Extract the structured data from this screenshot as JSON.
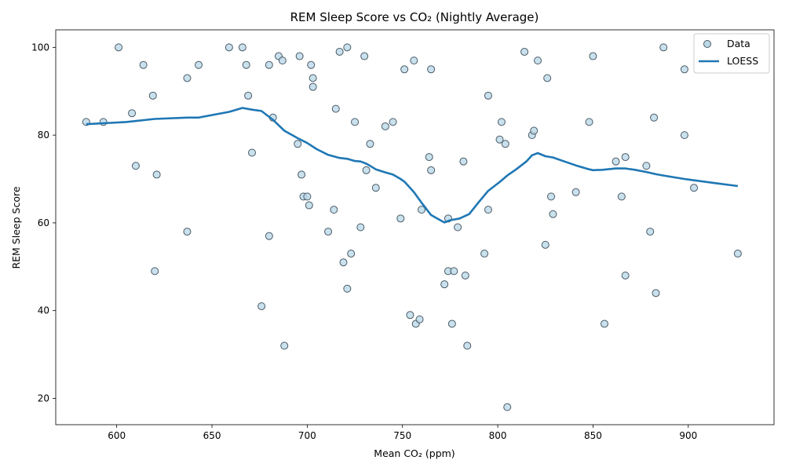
{
  "chart_data": {
    "type": "scatter",
    "title": "REM Sleep Score vs CO₂ (Nightly Average)",
    "xlabel": "Mean CO₂ (ppm)",
    "ylabel": "REM Sleep Score",
    "xlim": [
      568,
      945
    ],
    "ylim": [
      14,
      104
    ],
    "xticks": [
      600,
      650,
      700,
      750,
      800,
      850,
      900
    ],
    "yticks": [
      20,
      40,
      60,
      80,
      100
    ],
    "grid": false,
    "legend_position": "top-right",
    "colors": {
      "scatter_fill": "#bcd8e8",
      "scatter_edge": "#4a5a66",
      "line": "#1f77b4"
    },
    "series": [
      {
        "name": "Data",
        "type": "scatter",
        "points": [
          [
            584,
            83
          ],
          [
            593,
            83
          ],
          [
            601,
            100
          ],
          [
            608,
            85
          ],
          [
            610,
            73
          ],
          [
            614,
            96
          ],
          [
            619,
            89
          ],
          [
            620,
            49
          ],
          [
            621,
            71
          ],
          [
            637,
            93
          ],
          [
            637,
            58
          ],
          [
            643,
            96
          ],
          [
            659,
            100
          ],
          [
            666,
            100
          ],
          [
            668,
            96
          ],
          [
            669,
            89
          ],
          [
            671,
            76
          ],
          [
            676,
            41
          ],
          [
            680,
            96
          ],
          [
            680,
            57
          ],
          [
            682,
            84
          ],
          [
            685,
            98
          ],
          [
            687,
            97
          ],
          [
            688,
            32
          ],
          [
            695,
            78
          ],
          [
            696,
            98
          ],
          [
            697,
            71
          ],
          [
            698,
            66
          ],
          [
            700,
            66
          ],
          [
            701,
            64
          ],
          [
            702,
            96
          ],
          [
            703,
            93
          ],
          [
            703,
            91
          ],
          [
            711,
            58
          ],
          [
            714,
            63
          ],
          [
            715,
            86
          ],
          [
            717,
            99
          ],
          [
            719,
            51
          ],
          [
            721,
            100
          ],
          [
            721,
            45
          ],
          [
            723,
            53
          ],
          [
            725,
            83
          ],
          [
            728,
            59
          ],
          [
            730,
            98
          ],
          [
            731,
            72
          ],
          [
            733,
            78
          ],
          [
            736,
            68
          ],
          [
            741,
            82
          ],
          [
            745,
            83
          ],
          [
            749,
            61
          ],
          [
            751,
            95
          ],
          [
            754,
            39
          ],
          [
            756,
            97
          ],
          [
            757,
            37
          ],
          [
            759,
            38
          ],
          [
            760,
            63
          ],
          [
            764,
            75
          ],
          [
            765,
            95
          ],
          [
            765,
            72
          ],
          [
            772,
            46
          ],
          [
            774,
            61
          ],
          [
            774,
            49
          ],
          [
            776,
            37
          ],
          [
            777,
            49
          ],
          [
            779,
            59
          ],
          [
            782,
            74
          ],
          [
            783,
            48
          ],
          [
            784,
            32
          ],
          [
            793,
            53
          ],
          [
            795,
            89
          ],
          [
            795,
            63
          ],
          [
            801,
            79
          ],
          [
            802,
            83
          ],
          [
            804,
            78
          ],
          [
            805,
            18
          ],
          [
            814,
            99
          ],
          [
            818,
            80
          ],
          [
            819,
            81
          ],
          [
            821,
            97
          ],
          [
            825,
            55
          ],
          [
            826,
            93
          ],
          [
            828,
            66
          ],
          [
            829,
            62
          ],
          [
            841,
            67
          ],
          [
            848,
            83
          ],
          [
            850,
            98
          ],
          [
            856,
            37
          ],
          [
            862,
            74
          ],
          [
            865,
            66
          ],
          [
            867,
            75
          ],
          [
            867,
            48
          ],
          [
            878,
            73
          ],
          [
            880,
            58
          ],
          [
            882,
            84
          ],
          [
            883,
            44
          ],
          [
            887,
            100
          ],
          [
            898,
            95
          ],
          [
            898,
            80
          ],
          [
            903,
            68
          ],
          [
            926,
            53
          ]
        ]
      },
      {
        "name": "LOESS",
        "type": "line",
        "points": [
          [
            584,
            82.5
          ],
          [
            593,
            82.7
          ],
          [
            605,
            83
          ],
          [
            620,
            83.7
          ],
          [
            637,
            84
          ],
          [
            643,
            84
          ],
          [
            659,
            85.3
          ],
          [
            666,
            86.2
          ],
          [
            671,
            85.8
          ],
          [
            676,
            85.5
          ],
          [
            682,
            83.5
          ],
          [
            688,
            81
          ],
          [
            695,
            79.3
          ],
          [
            700,
            78.2
          ],
          [
            705,
            76.8
          ],
          [
            711,
            75.5
          ],
          [
            717,
            74.8
          ],
          [
            721,
            74.6
          ],
          [
            725,
            74.1
          ],
          [
            728,
            74
          ],
          [
            731,
            73.5
          ],
          [
            733,
            73
          ],
          [
            736,
            72.2
          ],
          [
            741,
            71.5
          ],
          [
            745,
            71
          ],
          [
            749,
            70
          ],
          [
            751,
            69.4
          ],
          [
            756,
            67
          ],
          [
            760,
            64.6
          ],
          [
            765,
            61.8
          ],
          [
            769,
            60.8
          ],
          [
            772,
            60.1
          ],
          [
            775,
            60.6
          ],
          [
            780,
            61
          ],
          [
            785,
            62
          ],
          [
            790,
            64.7
          ],
          [
            795,
            67.3
          ],
          [
            801,
            69.3
          ],
          [
            805,
            70.8
          ],
          [
            810,
            72.3
          ],
          [
            815,
            74
          ],
          [
            818,
            75.4
          ],
          [
            821,
            75.9
          ],
          [
            825,
            75.2
          ],
          [
            829,
            74.9
          ],
          [
            835,
            74
          ],
          [
            841,
            73.1
          ],
          [
            848,
            72.2
          ],
          [
            850,
            72
          ],
          [
            855,
            72.1
          ],
          [
            862,
            72.4
          ],
          [
            867,
            72.4
          ],
          [
            872,
            72.1
          ],
          [
            878,
            71.6
          ],
          [
            883,
            71.1
          ],
          [
            887,
            70.8
          ],
          [
            898,
            70
          ],
          [
            903,
            69.7
          ],
          [
            915,
            69
          ],
          [
            926,
            68.4
          ]
        ]
      }
    ]
  }
}
